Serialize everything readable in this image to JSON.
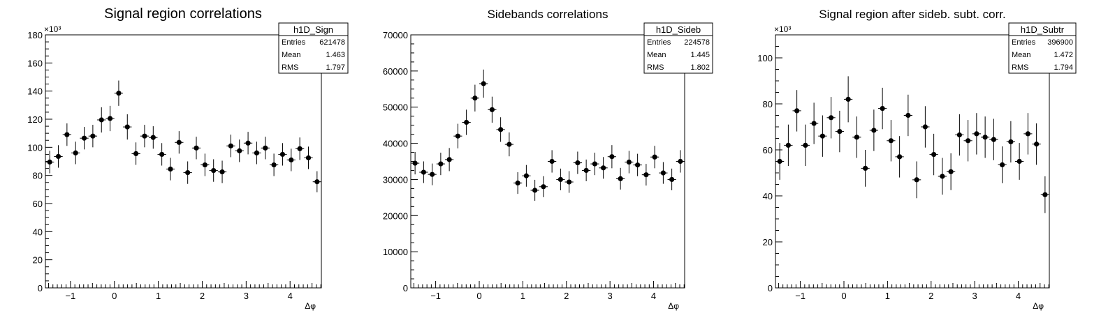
{
  "chart_data": [
    {
      "type": "scatter",
      "title": "Signal region correlations",
      "xlabel": "Δφ",
      "exponent_label": "×10³",
      "stats": {
        "name": "h1D_Sign",
        "rows": [
          [
            "Entries",
            "621478"
          ],
          [
            "Mean",
            "1.463"
          ],
          [
            "RMS",
            "1.797"
          ]
        ]
      },
      "xlim": [
        -1.5708,
        4.7124
      ],
      "ylim": [
        0,
        180
      ],
      "xticks": [
        -1,
        0,
        1,
        2,
        3,
        4
      ],
      "xtick_labels": [
        "−1",
        "0",
        "1",
        "2",
        "3",
        "4"
      ],
      "yticks": [
        0,
        20,
        40,
        60,
        80,
        100,
        120,
        140,
        160,
        180
      ],
      "ytick_labels": [
        "0",
        "20",
        "40",
        "60",
        "80",
        "100",
        "120",
        "140",
        "160",
        "180"
      ],
      "series": [
        {
          "values": [
            89.5,
            93.5,
            109.0,
            96.0,
            106.5,
            108.0,
            119.5,
            120.5,
            138.5,
            114.5,
            95.5,
            108.0,
            107.0,
            95.0,
            84.5,
            103.5,
            82.0,
            99.5,
            87.5,
            83.5,
            82.5,
            101.0,
            97.5,
            103.0,
            96.0,
            99.5,
            87.5,
            95.0,
            91.0,
            99.0,
            92.5,
            75.5
          ],
          "errors": [
            8,
            8,
            8,
            8,
            8,
            8,
            9,
            9,
            9,
            9,
            8,
            8,
            8,
            8,
            8,
            8,
            8,
            8,
            8,
            8,
            8,
            8,
            8,
            8,
            8,
            8,
            8,
            8,
            8,
            8,
            8,
            7.5
          ]
        }
      ]
    },
    {
      "type": "scatter",
      "title": "Sidebands correlations",
      "xlabel": "Δφ",
      "stats": {
        "name": "h1D_Sideb",
        "rows": [
          [
            "Entries",
            "224578"
          ],
          [
            "Mean",
            "1.445"
          ],
          [
            "RMS",
            "1.802"
          ]
        ]
      },
      "xlim": [
        -1.5708,
        4.7124
      ],
      "ylim": [
        0,
        70000
      ],
      "xticks": [
        -1,
        0,
        1,
        2,
        3,
        4
      ],
      "xtick_labels": [
        "−1",
        "0",
        "1",
        "2",
        "3",
        "4"
      ],
      "yticks": [
        0,
        10000,
        20000,
        30000,
        40000,
        50000,
        60000,
        70000
      ],
      "ytick_labels": [
        "0",
        "10000",
        "20000",
        "30000",
        "40000",
        "50000",
        "60000",
        "70000"
      ],
      "series": [
        {
          "values": [
            34500,
            32000,
            31400,
            34300,
            35500,
            42000,
            45800,
            52500,
            56500,
            49300,
            43800,
            39700,
            29000,
            31000,
            27000,
            28000,
            35000,
            30000,
            29300,
            34600,
            32500,
            34300,
            33200,
            36300,
            30200,
            34800,
            34000,
            31300,
            36200,
            31800,
            30000,
            35000
          ],
          "errors": [
            3100,
            3000,
            3000,
            3100,
            3200,
            3400,
            3500,
            3700,
            3900,
            3600,
            3400,
            3300,
            3000,
            3000,
            2900,
            2900,
            3100,
            3000,
            3000,
            3100,
            3000,
            3100,
            3000,
            3200,
            3000,
            3100,
            3100,
            3000,
            3100,
            3000,
            3000,
            3100
          ]
        }
      ]
    },
    {
      "type": "scatter",
      "title": "Signal region after sideb. subt. corr.",
      "xlabel": "Δφ",
      "exponent_label": "×10³",
      "stats": {
        "name": "h1D_Subtr",
        "rows": [
          [
            "Entries",
            "396900"
          ],
          [
            "Mean",
            "1.472"
          ],
          [
            "RMS",
            "1.794"
          ]
        ]
      },
      "xlim": [
        -1.5708,
        4.7124
      ],
      "ylim": [
        0,
        110
      ],
      "xticks": [
        -1,
        0,
        1,
        2,
        3,
        4
      ],
      "xtick_labels": [
        "−1",
        "0",
        "1",
        "2",
        "3",
        "4"
      ],
      "yticks": [
        0,
        20,
        40,
        60,
        80,
        100
      ],
      "ytick_labels": [
        "0",
        "20",
        "40",
        "60",
        "80",
        "100"
      ],
      "series": [
        {
          "values": [
            55,
            62,
            77,
            62,
            71.5,
            66,
            74,
            68,
            82,
            65.5,
            52,
            68.5,
            78,
            64,
            57,
            75,
            47,
            70,
            58,
            48.5,
            50.5,
            66.5,
            64,
            67,
            65.5,
            64.5,
            53.5,
            63.5,
            55,
            67,
            62.5,
            40.5
          ],
          "errors": [
            8,
            9,
            9,
            9,
            9,
            9,
            9,
            9,
            10,
            9,
            8,
            9,
            9,
            9,
            9,
            9,
            8,
            9,
            9,
            8,
            8,
            9,
            9,
            9,
            9,
            9,
            8,
            9,
            8,
            9,
            9,
            8
          ]
        }
      ]
    }
  ]
}
